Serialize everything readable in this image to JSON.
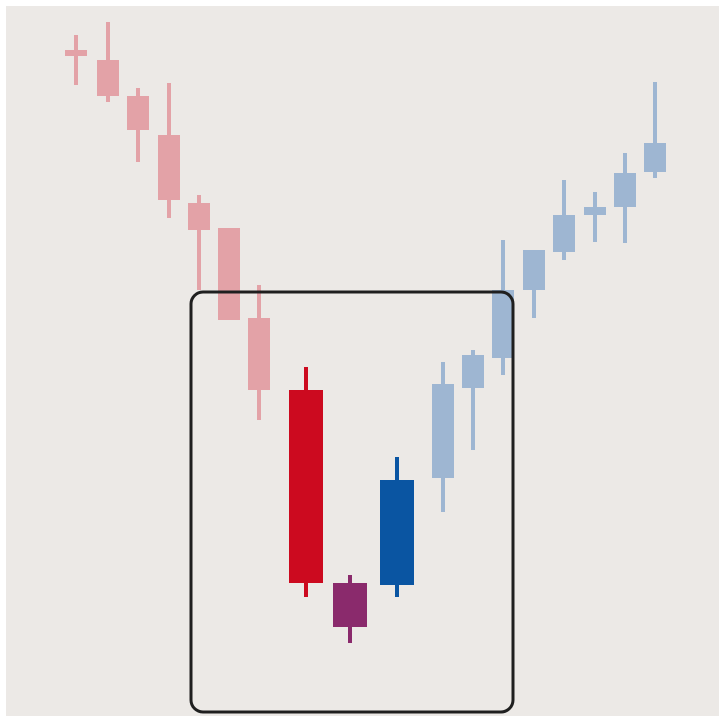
{
  "chart_data": {
    "type": "candlestick",
    "open": [
      672,
      662,
      626,
      587,
      519,
      494,
      404,
      332,
      139,
      137,
      244,
      367,
      432,
      432,
      470,
      507,
      515,
      550
    ],
    "high": [
      687,
      700,
      634,
      639,
      527,
      494,
      437,
      355,
      147,
      265,
      360,
      372,
      482,
      470,
      542,
      530,
      569,
      640
    ],
    "low": [
      637,
      620,
      560,
      504,
      432,
      402,
      302,
      125,
      79,
      125,
      210,
      272,
      347,
      404,
      462,
      480,
      479,
      544
    ],
    "close": [
      666,
      626,
      592,
      522,
      492,
      402,
      332,
      139,
      95,
      242,
      338,
      334,
      364,
      472,
      507,
      515,
      549,
      579
    ],
    "colors": [
      "#e3a2a7",
      "#e3a2a7",
      "#e3a2a7",
      "#e3a2a7",
      "#e3a2a7",
      "#e3a2a7",
      "#e3a2a7",
      "#cc0a1f",
      "#8a2a6c",
      "#0a55a2",
      "#9eb6d2",
      "#9eb6d2",
      "#9eb6d2",
      "#9eb6d2",
      "#9eb6d2",
      "#9eb6d2",
      "#9eb6d2",
      "#9eb6d2"
    ],
    "ylim": [
      0,
      722
    ]
  }
}
